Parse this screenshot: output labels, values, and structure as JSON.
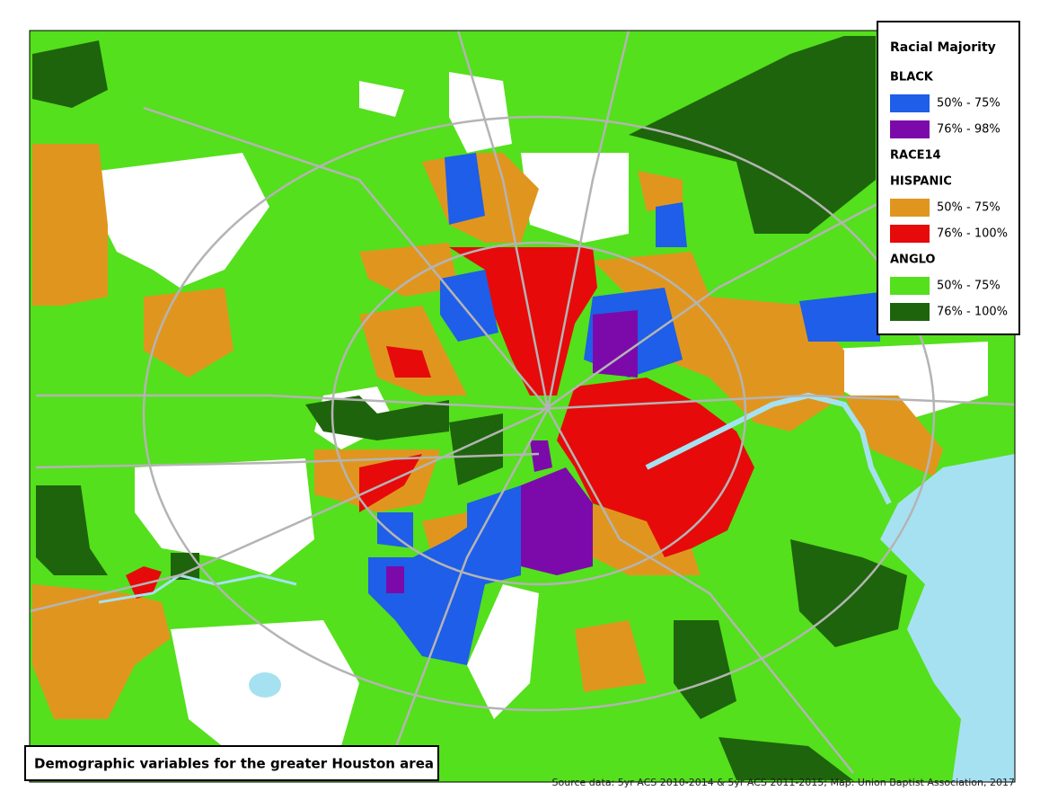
{
  "legend": {
    "title": "Racial Majority",
    "layer_label": "RACE14",
    "groups": [
      {
        "name": "BLACK",
        "items": [
          {
            "label": "50% - 75%",
            "color": "#1e5ee8"
          },
          {
            "label": "76% - 98%",
            "color": "#7c0aaa"
          }
        ]
      },
      {
        "name": "HISPANIC",
        "items": [
          {
            "label": "50% - 75%",
            "color": "#e0961e"
          },
          {
            "label": "76% - 100%",
            "color": "#e60a0a"
          }
        ]
      },
      {
        "name": "ANGLO",
        "items": [
          {
            "label": "50% - 75%",
            "color": "#54e01c"
          },
          {
            "label": "76% - 100%",
            "color": "#1e640c"
          }
        ]
      }
    ]
  },
  "caption": "Demographic variables for the greater Houston area",
  "source": "Source data: 5yr ACS 2010-2014 & 5yr ACS 2011-2015; Map: Union Baptist Association, 2017"
}
